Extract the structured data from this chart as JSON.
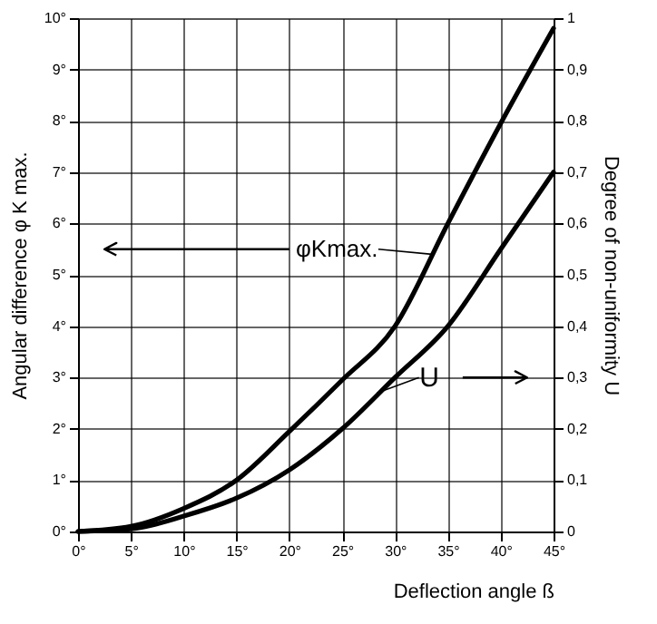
{
  "chart_data": {
    "type": "line",
    "xlabel": "Deflection angle ß",
    "ylabel": "Angular difference   φ K max.",
    "y2label": "Degree of non-uniformity U",
    "x": [
      0,
      5,
      10,
      15,
      20,
      25,
      30,
      35,
      40,
      45
    ],
    "series": [
      {
        "color": "#000000",
        "values": [
          0,
          0.1,
          0.45,
          1.0,
          1.95,
          2.95,
          4.0,
          6.0,
          7.95,
          9.8
        ]
      },
      {
        "color": "#000000",
        "axis": "y2",
        "values": [
          0,
          0.005,
          0.03,
          0.065,
          0.12,
          0.2,
          0.3,
          0.4,
          0.55,
          0.7
        ]
      }
    ],
    "xlim": [
      0,
      45
    ],
    "xticks": [
      {
        "value": 0,
        "label": "0°"
      },
      {
        "value": 5,
        "label": "5°"
      },
      {
        "value": 10,
        "label": "10°"
      },
      {
        "value": 15,
        "label": "15°"
      },
      {
        "value": 20,
        "label": "20°"
      },
      {
        "value": 25,
        "label": "25°"
      },
      {
        "value": 30,
        "label": "30°"
      },
      {
        "value": 35,
        "label": "35°"
      },
      {
        "value": 40,
        "label": "40°"
      },
      {
        "value": 45,
        "label": "45°"
      }
    ],
    "ylim": [
      0,
      10
    ],
    "yticks": [
      {
        "value": 0,
        "label": "0°"
      },
      {
        "value": 1,
        "label": "1°"
      },
      {
        "value": 2,
        "label": "2°"
      },
      {
        "value": 3,
        "label": "3°"
      },
      {
        "value": 4,
        "label": "4°"
      },
      {
        "value": 5,
        "label": "5°"
      },
      {
        "value": 6,
        "label": "6°"
      },
      {
        "value": 7,
        "label": "7°"
      },
      {
        "value": 8,
        "label": "8°"
      },
      {
        "value": 9,
        "label": "9°"
      },
      {
        "value": 10,
        "label": "10°"
      }
    ],
    "y2lim": [
      0,
      1
    ],
    "y2ticks": [
      {
        "value": 0,
        "label": "0"
      },
      {
        "value": 0.1,
        "label": "0,1"
      },
      {
        "value": 0.2,
        "label": "0,2"
      },
      {
        "value": 0.3,
        "label": "0,3"
      },
      {
        "value": 0.4,
        "label": "0,4"
      },
      {
        "value": 0.5,
        "label": "0,5"
      },
      {
        "value": 0.6,
        "label": "0,6"
      },
      {
        "value": 0.7,
        "label": "0,7"
      },
      {
        "value": 0.8,
        "label": "0,8"
      },
      {
        "value": 0.9,
        "label": "0,9"
      },
      {
        "value": 1,
        "label": "1"
      }
    ],
    "annotations": [
      {
        "text": "φKmax.",
        "x": 33.5,
        "y": 5.4
      },
      {
        "text": "U",
        "x": 28.3,
        "y": 2.7
      }
    ],
    "grid": true,
    "marker": "none",
    "line_style": "solid"
  }
}
